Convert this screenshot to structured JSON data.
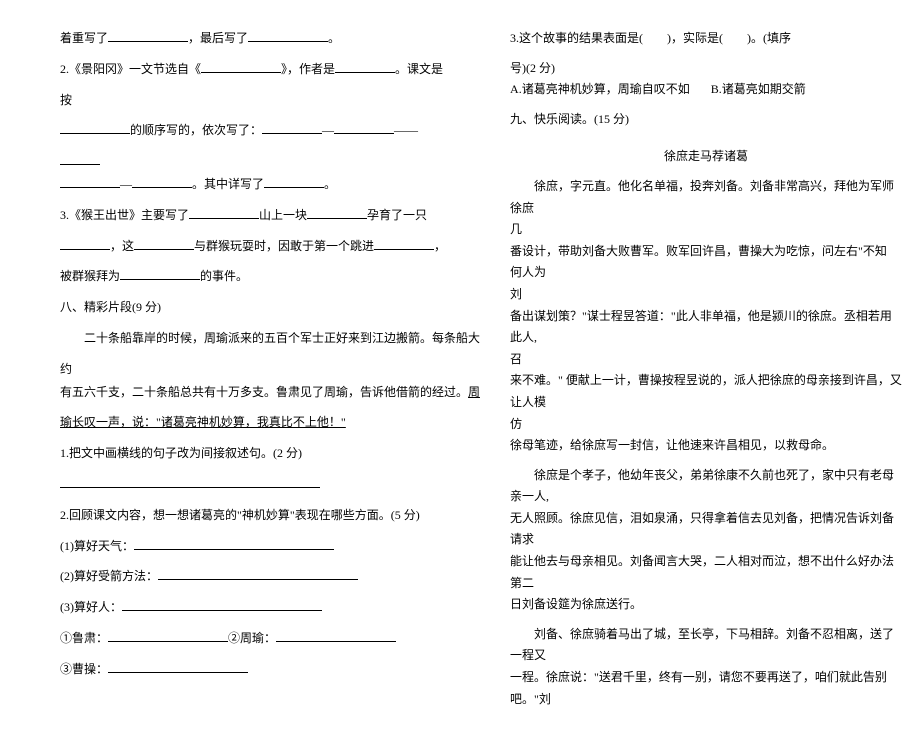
{
  "left": {
    "l1a": "着重写了",
    "l1b": "，最后写了",
    "l1c": "。",
    "l2a": "2.《景阳冈》一文节选自《",
    "l2b": "》，作者是",
    "l2c": "。课文是",
    "l3": "按",
    "l4a": "的顺序写的，依次写了：",
    "l4dash": "—",
    "l4dash2": "——",
    "l5a": "。其中详写了",
    "l5b": "。",
    "l6a": "3.《猴王出世》主要写了",
    "l6b": "山上一块",
    "l6c": "孕育了一只",
    "l7a": "，这",
    "l7b": "与群猴玩耍时，因敢于第一个跳进",
    "l7c": "，",
    "l8a": "被群猴拜为",
    "l8b": "的事件。",
    "sec8": "八、精彩片段(9 分)",
    "p1": "二十条船靠岸的时候，周瑜派来的五百个军士正好来到江边搬箭。每条船大",
    "p1b": "约",
    "p2a": "有五六千支，二十条船总共有十万多支。鲁肃见了周瑜，告诉他借箭的经过。",
    "p2u": "周",
    "p3u": "瑜长叹一声，说：\"诸葛亮神机妙算，我真比不上他！\"",
    "q1": "1.把文中画横线的句子改为间接叙述句。(2 分)",
    "q2": "2.回顾课文内容，想一想诸葛亮的\"神机妙算\"表现在哪些方面。(5 分)",
    "q2_1": "(1)算好天气：",
    "q2_2": "(2)算好受箭方法：",
    "q2_3": "(3)算好人：",
    "q2_3a": "①鲁肃：",
    "q2_3b": "②周瑜：",
    "q2_3c": "③曹操："
  },
  "right": {
    "q3a": "3.这个故事的结果表面是(",
    "q3b": ")，实际是(",
    "q3c": ")。(填序",
    "q3d": "号)(2 分)",
    "optA": "A.诸葛亮神机妙算，周瑜自叹不如",
    "optB": "B.诸葛亮如期交箭",
    "sec9": "九、快乐阅读。(15 分)",
    "title": "徐庶走马荐诸葛",
    "r1": "徐庶，字元直。他化名单福，投奔刘备。刘备非常高兴，拜他为军师",
    "r1b": "徐庶",
    "r2": "几",
    "r3": "番设计，带助刘备大败曹军。败军回许昌，曹操大为吃惊，问左右\"不知",
    "r3b": "何人为",
    "r4": "刘",
    "r5": "备出谋划策？\"谋士程昱答道：\"此人非单福，他是颍川的徐庶。丞相若用",
    "r5b": "此人,",
    "r6": "召",
    "r7": "来不难。\" 便献上一计，曹操按程昱说的，派人把徐庶的母亲接到许昌，又",
    "r7b": "让人模",
    "r8": "仿",
    "r9": "徐母笔迹，给徐庶写一封信，让他速来许昌相见，以救母命。",
    "r10": "徐庶是个孝子，他幼年丧父，弟弟徐康不久前也死了，家中只有老母",
    "r10b": "亲一人,",
    "r11": "无人照顾。徐庶见信，泪如泉涌，只得拿着信去见刘备，把情况告诉刘备",
    "r11b": "请求",
    "r12": "能让他去与母亲相见。刘备闻言大哭，二人相对而泣，想不出什么好办法",
    "r12b": "第二",
    "r13": "日刘备设筵为徐庶送行。",
    "r14": "刘备、徐庶骑着马出了城，至长亭，下马相辞。刘备不忍相离，送了",
    "r14b": "一程又",
    "r15": "一程。徐庶说：\"送君千里，终有一别，请您不要再送了，咱们就此告别",
    "r15b": "吧。\"刘"
  }
}
